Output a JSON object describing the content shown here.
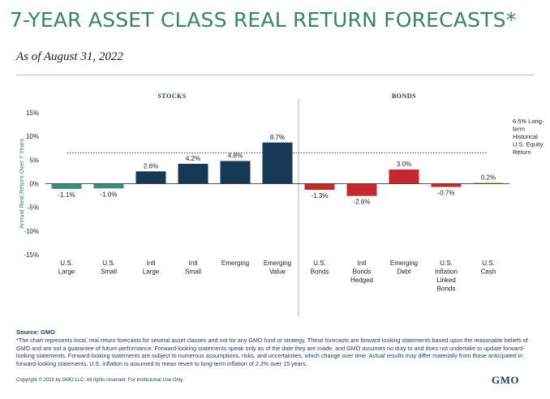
{
  "title": "7-YEAR ASSET CLASS REAL RETURN FORECASTS*",
  "subtitle": "As of August 31, 2022",
  "colors": {
    "title": "#3a8460",
    "stocks_positive": "#163a55",
    "stocks_negative": "#3b8e78",
    "bonds": "#c6282f",
    "cash": "#b0a76a",
    "text_blue": "#1f3a5a"
  },
  "chart_data": {
    "type": "bar",
    "ylabel": "Annual Real Return Over 7 Years",
    "ylim": [
      -15,
      15
    ],
    "yticks": [
      15,
      10,
      5,
      0,
      -5,
      -10,
      -15
    ],
    "ytick_labels": [
      "15%",
      "10%",
      "5%",
      "0%",
      "-5%",
      "-10%",
      "-15%"
    ],
    "groups": [
      {
        "label": "STOCKS",
        "start": 0,
        "end": 5
      },
      {
        "label": "BONDS",
        "start": 6,
        "end": 10
      }
    ],
    "categories": [
      [
        "U.S.",
        "Large"
      ],
      [
        "U.S.",
        "Small"
      ],
      [
        "Intl",
        "Large"
      ],
      [
        "Intl",
        "Small"
      ],
      [
        "Emerging"
      ],
      [
        "Emerging",
        "Value"
      ],
      [
        "U.S.",
        "Bonds"
      ],
      [
        "Intl",
        "Bonds",
        "Hedged"
      ],
      [
        "Emerging",
        "Debt"
      ],
      [
        "U.S.",
        "Inflation",
        "Linked",
        "Bonds"
      ],
      [
        "U.S.",
        "Cash"
      ]
    ],
    "values": [
      -1.1,
      -1.0,
      2.6,
      4.2,
      4.8,
      8.7,
      -1.3,
      -2.6,
      3.0,
      -0.7,
      0.2
    ],
    "value_labels": [
      "-1.1%",
      "-1.0%",
      "2.6%",
      "4.2%",
      "4.8%",
      "8.7%",
      "-1.3%",
      "-2.6%",
      "3.0%",
      "-0.7%",
      "0.2%"
    ],
    "reference_line": {
      "value": 6.5,
      "style": "dotted",
      "label": [
        "6.5% Long-",
        "term",
        "Historical",
        "U.S. Equity",
        "Return"
      ]
    }
  },
  "footer": {
    "source": "Source: GMO",
    "note": "*The chart represents local, real return forecasts for several asset classes and not for any GMO fund or strategy. These forecasts are forward-looking statements based upon the reasonable beliefs of GMO and are not a guarantee of future performance. Forward-looking statements speak only as of the date they are made, and GMO assumes no duty to and does not undertake to update forward-looking statements. Forward-looking statements are subject to numerous assumptions, risks, and uncertainties, which change over time. Actual results may differ materially from those anticipated in forward-looking statements. U.S. inflation is assumed to mean revert to long-term inflation of 2.2% over 15 years.",
    "copyright": "Copyright © 2022 by GMO LLC. All rights reserved. For Institutional Use Only.",
    "logo": "GMO"
  }
}
